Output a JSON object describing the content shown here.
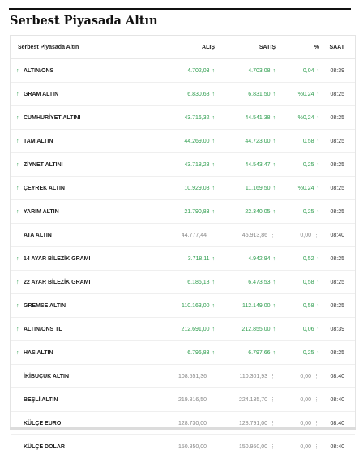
{
  "page_title": "Serbest Piyasada Altın",
  "table": {
    "headers": {
      "name": "Serbest Piyasada Altın",
      "buy": "ALIŞ",
      "sell": "SATIŞ",
      "pct": "%",
      "time": "SAAT"
    },
    "rows": [
      {
        "name": "ALTIN/ONS",
        "buy": "4.702,03",
        "sell": "4.703,08",
        "pct": "0,04",
        "time": "08:39",
        "trend": "up"
      },
      {
        "name": "GRAM ALTIN",
        "buy": "6.830,68",
        "sell": "6.831,50",
        "pct": "%0,24",
        "time": "08:25",
        "trend": "up"
      },
      {
        "name": "CUMHURİYET ALTINI",
        "buy": "43.716,32",
        "sell": "44.541,38",
        "pct": "%0,24",
        "time": "08:25",
        "trend": "up"
      },
      {
        "name": "TAM ALTIN",
        "buy": "44.269,00",
        "sell": "44.723,00",
        "pct": "0,58",
        "time": "08:25",
        "trend": "up"
      },
      {
        "name": "ZİYNET ALTINI",
        "buy": "43.718,28",
        "sell": "44.543,47",
        "pct": "0,25",
        "time": "08:25",
        "trend": "up"
      },
      {
        "name": "ÇEYREK ALTIN",
        "buy": "10.929,08",
        "sell": "11.169,50",
        "pct": "%0,24",
        "time": "08:25",
        "trend": "up"
      },
      {
        "name": "YARIM ALTIN",
        "buy": "21.790,83",
        "sell": "22.340,05",
        "pct": "0,25",
        "time": "08:25",
        "trend": "up"
      },
      {
        "name": "ATA ALTIN",
        "buy": "44.777,44",
        "sell": "45.913,86",
        "pct": "0,00",
        "time": "08:40",
        "trend": "neutral"
      },
      {
        "name": "14 AYAR BİLEZİK GRAMI",
        "buy": "3.718,11",
        "sell": "4.942,94",
        "pct": "0,52",
        "time": "08:25",
        "trend": "up"
      },
      {
        "name": "22 AYAR BİLEZİK GRAMI",
        "buy": "6.186,18",
        "sell": "6.473,53",
        "pct": "0,58",
        "time": "08:25",
        "trend": "up"
      },
      {
        "name": "GREMSE ALTIN",
        "buy": "110.163,00",
        "sell": "112.149,00",
        "pct": "0,58",
        "time": "08:25",
        "trend": "up"
      },
      {
        "name": "ALTIN/ONS TL",
        "buy": "212.691,00",
        "sell": "212.855,00",
        "pct": "0,06",
        "time": "08:39",
        "trend": "up"
      },
      {
        "name": "HAS ALTIN",
        "buy": "6.796,83",
        "sell": "6.797,66",
        "pct": "0,25",
        "time": "08:25",
        "trend": "up"
      },
      {
        "name": "İKİBUÇUK ALTIN",
        "buy": "108.551,36",
        "sell": "110.301,93",
        "pct": "0,00",
        "time": "08:40",
        "trend": "neutral"
      },
      {
        "name": "BEŞLİ ALTIN",
        "buy": "219.816,50",
        "sell": "224.135,70",
        "pct": "0,00",
        "time": "08:40",
        "trend": "neutral"
      },
      {
        "name": "KÜLÇE EURO",
        "buy": "128.730,00",
        "sell": "128.791,00",
        "pct": "0,00",
        "time": "08:40",
        "trend": "neutral"
      },
      {
        "name": "KÜLÇE DOLAR",
        "buy": "150.850,00",
        "sell": "150.950,00",
        "pct": "0,00",
        "time": "08:40",
        "trend": "neutral"
      }
    ]
  },
  "icons": {
    "up": "arrow-up-icon",
    "neutral": "dots-vertical-icon"
  },
  "colors": {
    "up": "#2e9d4e",
    "neutral": "#888888",
    "header_bar": "#111111"
  }
}
